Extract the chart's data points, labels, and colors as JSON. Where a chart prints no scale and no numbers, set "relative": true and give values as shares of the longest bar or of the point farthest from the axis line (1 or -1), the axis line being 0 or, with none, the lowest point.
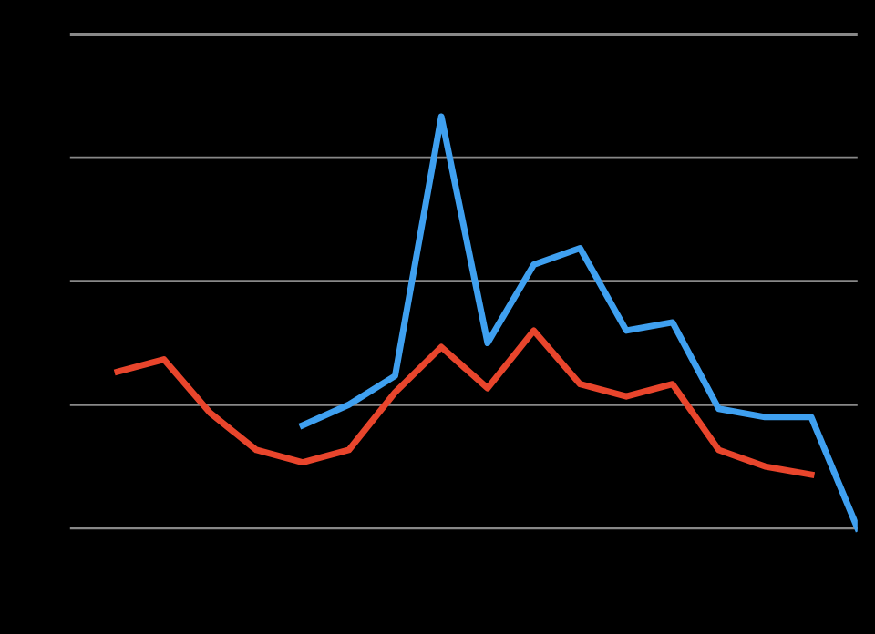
{
  "chart_data": {
    "type": "line",
    "relative": true,
    "grid": "y",
    "marker": "none",
    "line_style": "solid",
    "categories": [
      null,
      null,
      null,
      null,
      null,
      null,
      null,
      null,
      null,
      null,
      null,
      null,
      null,
      null,
      null,
      null,
      null
    ],
    "series": [
      {
        "color": "#e8452c",
        "values": [
          0.38,
          0.41,
          0.28,
          0.19,
          0.16,
          0.19,
          0.33,
          0.44,
          0.34,
          0.48,
          0.35,
          0.32,
          0.35,
          0.19,
          0.15,
          0.13,
          null
        ]
      },
      {
        "color": "#3fa0f0",
        "values": [
          null,
          null,
          null,
          null,
          0.25,
          0.3,
          0.37,
          1,
          0.45,
          0.64,
          0.68,
          0.48,
          0.5,
          0.29,
          0.27,
          0.27,
          0
        ]
      }
    ]
  }
}
